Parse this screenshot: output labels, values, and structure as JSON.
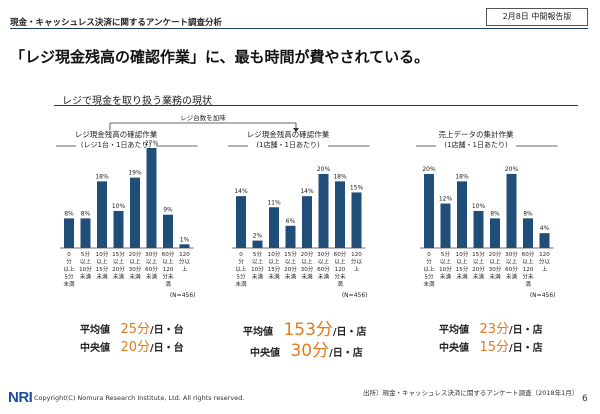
{
  "header": {
    "title": "現金・キャッシュレス決済に関するアンケート調査分析",
    "date_label": "2月8日 中間報告版"
  },
  "headline": "「レジ現金残高の確認作業」に、最も時間が費やされている。",
  "section_title": "レジで現金を取り扱う業務の現状",
  "annotation": "レジ台数を加味",
  "footer": {
    "logo": "NRI",
    "copyright": "Copyright(C) Nomura Research Institute, Ltd. All rights reserved.",
    "source": "出所）現金・キャッシュレス決済に関するアンケート調査（2018年1月）",
    "page": "6"
  },
  "colors": {
    "bar": "#1f4e79",
    "accent": "#e07b1f",
    "rule": "#1f3f66"
  },
  "chart_data": [
    {
      "type": "bar",
      "title": "レジ現金残高の確認作業",
      "subtitle": "(レジ1台・1日あたり)",
      "categories": [
        "0分以上5分未満",
        "5分以上10分未満",
        "10分以上15分未満",
        "15分以上20分未満",
        "20分以上30分未満",
        "30分以上60分未満",
        "60分以上120分未満",
        "120分以上"
      ],
      "tick_lines": [
        [
          "0",
          "分",
          "以上",
          "5分",
          "未満"
        ],
        [
          "5分",
          "以上",
          "10分",
          "未満"
        ],
        [
          "10分",
          "以上",
          "15分",
          "未満"
        ],
        [
          "15分",
          "以上",
          "20分",
          "未満"
        ],
        [
          "20分",
          "以上",
          "30分",
          "未満"
        ],
        [
          "30分",
          "以上",
          "60分",
          "未満"
        ],
        [
          "60分",
          "以上",
          "120",
          "分未",
          "満"
        ],
        [
          "120",
          "分以",
          "上"
        ]
      ],
      "values": [
        8,
        8,
        18,
        10,
        19,
        27,
        9,
        1
      ],
      "value_labels": [
        "8%",
        "8%",
        "18%",
        "10%",
        "19%",
        "27%",
        "9%",
        "1%"
      ],
      "n_label": "(N=456)",
      "stats": {
        "mean_label": "平均値",
        "mean_value": "25分",
        "mean_unit": "/日・台",
        "median_label": "中央値",
        "median_value": "20分",
        "median_unit": "/日・台"
      }
    },
    {
      "type": "bar",
      "title": "レジ現金残高の確認作業",
      "subtitle": "(1店舗・1日あたり)",
      "categories": [
        "0分以上5分未満",
        "5分以上10分未満",
        "10分以上15分未満",
        "15分以上20分未満",
        "20分以上30分未満",
        "30分以上60分未満",
        "60分以上120分未満",
        "120分以上"
      ],
      "tick_lines": [
        [
          "0",
          "分",
          "以上",
          "5分",
          "未満"
        ],
        [
          "5分",
          "以上",
          "10分",
          "未満"
        ],
        [
          "10分",
          "以上",
          "15分",
          "未満"
        ],
        [
          "15分",
          "以上",
          "20分",
          "未満"
        ],
        [
          "20分",
          "以上",
          "30分",
          "未満"
        ],
        [
          "30分",
          "以上",
          "60分",
          "未満"
        ],
        [
          "60分",
          "以上",
          "120",
          "分未",
          "満"
        ],
        [
          "120",
          "分以",
          "上"
        ]
      ],
      "values": [
        14,
        2,
        11,
        6,
        14,
        20,
        18,
        15
      ],
      "value_labels": [
        "14%",
        "2%",
        "11%",
        "6%",
        "14%",
        "20%",
        "18%",
        "15%"
      ],
      "n_label": "(N=456)",
      "stats": {
        "mean_label": "平均値",
        "mean_value": "153分",
        "mean_unit": "/日・店",
        "median_label": "中央値",
        "median_value": "30分",
        "median_unit": "/日・店"
      }
    },
    {
      "type": "bar",
      "title": "売上データの集計作業",
      "subtitle": "(1店舗・1日あたり)",
      "categories": [
        "0分以上5分未満",
        "5分以上10分未満",
        "10分以上15分未満",
        "15分以上20分未満",
        "20分以上30分未満",
        "30分以上60分未満",
        "60分以上120分未満",
        "120分以上"
      ],
      "tick_lines": [
        [
          "0",
          "分",
          "以上",
          "5分",
          "未満"
        ],
        [
          "5分",
          "以上",
          "10分",
          "未満"
        ],
        [
          "10分",
          "以上",
          "15分",
          "未満"
        ],
        [
          "15分",
          "以上",
          "20分",
          "未満"
        ],
        [
          "20分",
          "以上",
          "30分",
          "未満"
        ],
        [
          "30分",
          "以上",
          "60分",
          "未満"
        ],
        [
          "60分",
          "以上",
          "120",
          "分未",
          "満"
        ],
        [
          "120",
          "分以",
          "上"
        ]
      ],
      "values": [
        20,
        12,
        18,
        10,
        8,
        20,
        8,
        4
      ],
      "value_labels": [
        "20%",
        "12%",
        "18%",
        "10%",
        "8%",
        "20%",
        "8%",
        "4%"
      ],
      "n_label": "(N=456)",
      "stats": {
        "mean_label": "平均値",
        "mean_value": "23分",
        "mean_unit": "/日・店",
        "median_label": "中央値",
        "median_value": "15分",
        "median_unit": "/日・店"
      }
    }
  ]
}
